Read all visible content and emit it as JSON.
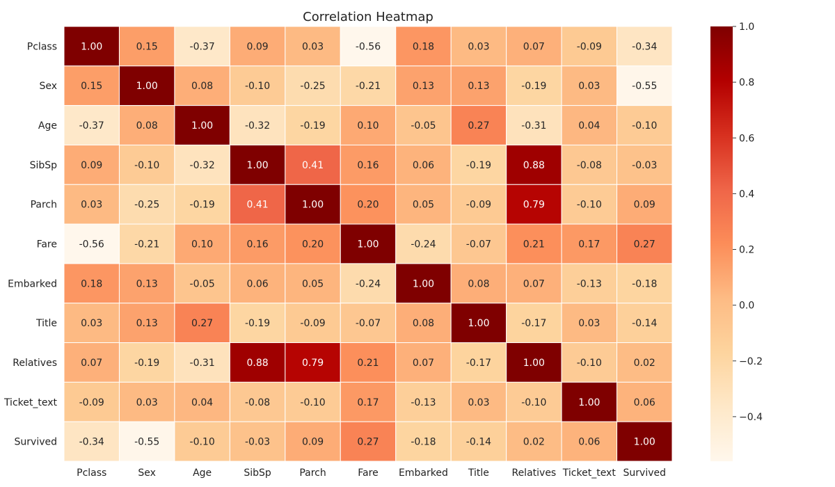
{
  "chart_data": {
    "type": "heatmap",
    "title": "Correlation Heatmap",
    "xlabel": "",
    "ylabel": "",
    "x_labels": [
      "Pclass",
      "Sex",
      "Age",
      "SibSp",
      "Parch",
      "Fare",
      "Embarked",
      "Title",
      "Relatives",
      "Ticket_text",
      "Survived"
    ],
    "y_labels": [
      "Pclass",
      "Sex",
      "Age",
      "SibSp",
      "Parch",
      "Fare",
      "Embarked",
      "Title",
      "Relatives",
      "Ticket_text",
      "Survived"
    ],
    "values": [
      [
        1.0,
        0.15,
        -0.37,
        0.09,
        0.03,
        -0.56,
        0.18,
        0.03,
        0.07,
        -0.09,
        -0.34
      ],
      [
        0.15,
        1.0,
        0.08,
        -0.1,
        -0.25,
        -0.21,
        0.13,
        0.13,
        -0.19,
        0.03,
        -0.55
      ],
      [
        -0.37,
        0.08,
        1.0,
        -0.32,
        -0.19,
        0.1,
        -0.05,
        0.27,
        -0.31,
        0.04,
        -0.1
      ],
      [
        0.09,
        -0.1,
        -0.32,
        1.0,
        0.41,
        0.16,
        0.06,
        -0.19,
        0.88,
        -0.08,
        -0.03
      ],
      [
        0.03,
        -0.25,
        -0.19,
        0.41,
        1.0,
        0.2,
        0.05,
        -0.09,
        0.79,
        -0.1,
        0.09
      ],
      [
        -0.56,
        -0.21,
        0.1,
        0.16,
        0.2,
        1.0,
        -0.24,
        -0.07,
        0.21,
        0.17,
        0.27
      ],
      [
        0.18,
        0.13,
        -0.05,
        0.06,
        0.05,
        -0.24,
        1.0,
        0.08,
        0.07,
        -0.13,
        -0.18
      ],
      [
        0.03,
        0.13,
        0.27,
        -0.19,
        -0.09,
        -0.07,
        0.08,
        1.0,
        -0.17,
        0.03,
        -0.14
      ],
      [
        0.07,
        -0.19,
        -0.31,
        0.88,
        0.79,
        0.21,
        0.07,
        -0.17,
        1.0,
        -0.1,
        0.02
      ],
      [
        -0.09,
        0.03,
        0.04,
        -0.08,
        -0.1,
        0.17,
        -0.13,
        0.03,
        -0.1,
        1.0,
        0.06
      ],
      [
        -0.34,
        -0.55,
        -0.1,
        -0.03,
        0.09,
        0.27,
        -0.18,
        -0.14,
        0.02,
        0.06,
        1.0
      ]
    ],
    "annotations_format": "0.00",
    "colormap": "OrRd",
    "color_range": [
      -0.56,
      1.0
    ],
    "colorbar": {
      "ticks": [
        1.0,
        0.8,
        0.6,
        0.4,
        0.2,
        0.0,
        -0.2,
        -0.4
      ],
      "tick_labels": [
        "1.0",
        "0.8",
        "0.6",
        "0.4",
        "0.2",
        "0.0",
        "−0.2",
        "−0.4"
      ],
      "placement": "right"
    },
    "gridlines": "white cell borders"
  }
}
